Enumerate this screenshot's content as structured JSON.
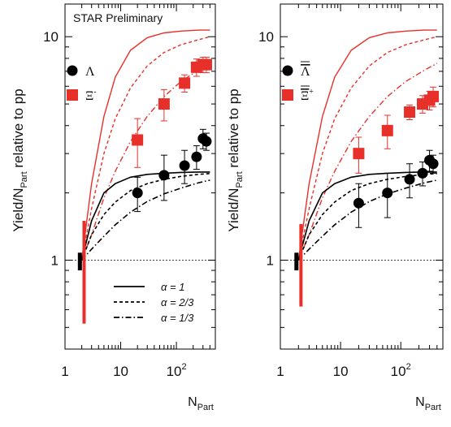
{
  "chart_data": [
    {
      "type": "scatter",
      "title": "",
      "annotation": "STAR Preliminary",
      "xlabel": "N",
      "xlabel_sub": "Part",
      "ylabel": "Yield/N",
      "ylabel_sub": "Part",
      "ylabel_rest": " relative to pp",
      "x_scale": "log",
      "y_scale": "log",
      "xlim": [
        1,
        500
      ],
      "ylim": [
        0.4,
        14
      ],
      "x_ticks": [
        {
          "v": 1,
          "label": "1"
        },
        {
          "v": 10,
          "label": "10"
        },
        {
          "v": 100,
          "label": "10",
          "sup": "2"
        }
      ],
      "y_ticks": [
        {
          "v": 1,
          "label": "1"
        },
        {
          "v": 10,
          "label": "10"
        }
      ],
      "reference_line": 1,
      "legend": {
        "series": [
          {
            "symbol": "circle",
            "color": "#000000",
            "label": "Λ",
            "overline": false,
            "sup": ""
          },
          {
            "symbol": "square",
            "color": "#e8302a",
            "label": "Ξ",
            "overline": false,
            "sup": "-"
          }
        ],
        "curves": [
          {
            "style": "solid",
            "label": "α = 1"
          },
          {
            "style": "dashed",
            "label": "α = 2/3"
          },
          {
            "style": "dashdot",
            "label": "α = 1/3"
          }
        ]
      },
      "series": [
        {
          "name": "Λ",
          "marker": "circle",
          "color": "#000000",
          "x": [
            20,
            60,
            140,
            230,
            300,
            345
          ],
          "y": [
            2.0,
            2.4,
            2.65,
            2.9,
            3.5,
            3.4
          ],
          "err": [
            0.35,
            0.55,
            0.45,
            0.35,
            0.35,
            0.3
          ]
        },
        {
          "name": "Ξ-",
          "marker": "square",
          "color": "#e8302a",
          "x": [
            20,
            60,
            140,
            230,
            300,
            345
          ],
          "y": [
            3.45,
            5.0,
            6.2,
            7.3,
            7.5,
            7.5
          ],
          "err": [
            0.85,
            0.8,
            0.55,
            0.65,
            0.6,
            0.6
          ]
        }
      ],
      "pp_bars": [
        {
          "color": "#000000",
          "x": 1.85,
          "ylo": 0.9,
          "yhi": 1.08
        },
        {
          "color": "#e8302a",
          "x": 2.2,
          "ylo": 0.52,
          "yhi": 1.5
        }
      ],
      "curves": [
        {
          "color": "#e8302a",
          "style": "solid",
          "x": [
            2,
            3,
            5,
            8,
            15,
            30,
            60,
            120,
            250,
            400
          ],
          "y": [
            1,
            2.2,
            4.4,
            6.6,
            8.7,
            9.9,
            10.4,
            10.6,
            10.7,
            10.7
          ]
        },
        {
          "color": "#e8302a",
          "style": "dashed",
          "x": [
            2,
            3,
            5,
            8,
            15,
            30,
            60,
            120,
            250,
            400
          ],
          "y": [
            1,
            1.7,
            3.0,
            4.3,
            5.9,
            7.4,
            8.5,
            9.2,
            9.7,
            10.0
          ]
        },
        {
          "color": "#e8302a",
          "style": "dashdot",
          "x": [
            2,
            3,
            5,
            8,
            15,
            30,
            60,
            120,
            250,
            400
          ],
          "y": [
            1,
            1.3,
            1.9,
            2.5,
            3.4,
            4.4,
            5.4,
            6.3,
            7.1,
            7.6
          ]
        },
        {
          "color": "#000000",
          "style": "solid",
          "x": [
            2,
            3,
            5,
            8,
            15,
            30,
            60,
            120,
            250,
            400
          ],
          "y": [
            1,
            1.5,
            2.0,
            2.2,
            2.35,
            2.42,
            2.45,
            2.47,
            2.48,
            2.48
          ]
        },
        {
          "color": "#000000",
          "style": "dashed",
          "x": [
            2,
            3,
            5,
            8,
            15,
            30,
            60,
            120,
            250,
            400
          ],
          "y": [
            1,
            1.3,
            1.6,
            1.82,
            2.05,
            2.2,
            2.3,
            2.37,
            2.42,
            2.44
          ]
        },
        {
          "color": "#000000",
          "style": "dashdot",
          "x": [
            2,
            3,
            5,
            8,
            15,
            30,
            60,
            120,
            250,
            400
          ],
          "y": [
            1,
            1.12,
            1.28,
            1.44,
            1.64,
            1.83,
            1.98,
            2.1,
            2.22,
            2.28
          ]
        }
      ]
    },
    {
      "type": "scatter",
      "title": "",
      "annotation": "",
      "xlabel": "N",
      "xlabel_sub": "Part",
      "ylabel": "Yield/N",
      "ylabel_sub": "Part",
      "ylabel_rest": " relative to pp",
      "x_scale": "log",
      "y_scale": "log",
      "xlim": [
        1,
        500
      ],
      "ylim": [
        0.4,
        14
      ],
      "x_ticks": [
        {
          "v": 1,
          "label": "1"
        },
        {
          "v": 10,
          "label": "10"
        },
        {
          "v": 100,
          "label": "10",
          "sup": "2"
        }
      ],
      "y_ticks": [
        {
          "v": 1,
          "label": "1"
        },
        {
          "v": 10,
          "label": "10"
        }
      ],
      "reference_line": 1,
      "legend": {
        "series": [
          {
            "symbol": "circle",
            "color": "#000000",
            "label": "Λ",
            "overline": true,
            "sup": ""
          },
          {
            "symbol": "square",
            "color": "#e8302a",
            "label": "Ξ",
            "overline": true,
            "sup": "+"
          }
        ],
        "curves": []
      },
      "series": [
        {
          "name": "anti-Λ",
          "marker": "circle",
          "color": "#000000",
          "x": [
            20,
            60,
            140,
            230,
            300,
            345
          ],
          "y": [
            1.8,
            2.0,
            2.3,
            2.45,
            2.8,
            2.7
          ],
          "err": [
            0.4,
            0.45,
            0.4,
            0.3,
            0.3,
            0.25
          ]
        },
        {
          "name": "Ξ+",
          "marker": "square",
          "color": "#e8302a",
          "x": [
            20,
            60,
            140,
            230,
            300,
            345
          ],
          "y": [
            3.0,
            3.8,
            4.6,
            5.0,
            5.2,
            5.4
          ],
          "err": [
            0.55,
            0.65,
            0.35,
            0.45,
            0.5,
            0.55
          ]
        }
      ],
      "pp_bars": [
        {
          "color": "#000000",
          "x": 1.85,
          "ylo": 0.9,
          "yhi": 1.08
        },
        {
          "color": "#e8302a",
          "x": 2.2,
          "ylo": 0.62,
          "yhi": 1.45
        }
      ],
      "curves": [
        {
          "color": "#e8302a",
          "style": "solid",
          "x": [
            2,
            3,
            5,
            8,
            15,
            30,
            60,
            120,
            250,
            400
          ],
          "y": [
            1,
            2.2,
            4.4,
            6.6,
            8.7,
            9.9,
            10.4,
            10.6,
            10.7,
            10.7
          ]
        },
        {
          "color": "#e8302a",
          "style": "dashed",
          "x": [
            2,
            3,
            5,
            8,
            15,
            30,
            60,
            120,
            250,
            400
          ],
          "y": [
            1,
            1.7,
            3.0,
            4.3,
            5.9,
            7.4,
            8.5,
            9.2,
            9.7,
            10.0
          ]
        },
        {
          "color": "#e8302a",
          "style": "dashdot",
          "x": [
            2,
            3,
            5,
            8,
            15,
            30,
            60,
            120,
            250,
            400
          ],
          "y": [
            1,
            1.3,
            1.9,
            2.5,
            3.4,
            4.4,
            5.4,
            6.3,
            7.1,
            7.6
          ]
        },
        {
          "color": "#000000",
          "style": "solid",
          "x": [
            2,
            3,
            5,
            8,
            15,
            30,
            60,
            120,
            250,
            400
          ],
          "y": [
            1,
            1.5,
            2.0,
            2.2,
            2.35,
            2.42,
            2.45,
            2.47,
            2.48,
            2.48
          ]
        },
        {
          "color": "#000000",
          "style": "dashed",
          "x": [
            2,
            3,
            5,
            8,
            15,
            30,
            60,
            120,
            250,
            400
          ],
          "y": [
            1,
            1.3,
            1.6,
            1.82,
            2.05,
            2.2,
            2.3,
            2.37,
            2.42,
            2.44
          ]
        },
        {
          "color": "#000000",
          "style": "dashdot",
          "x": [
            2,
            3,
            5,
            8,
            15,
            30,
            60,
            120,
            250,
            400
          ],
          "y": [
            1,
            1.12,
            1.28,
            1.44,
            1.64,
            1.83,
            1.98,
            2.1,
            2.22,
            2.28
          ]
        }
      ]
    }
  ]
}
